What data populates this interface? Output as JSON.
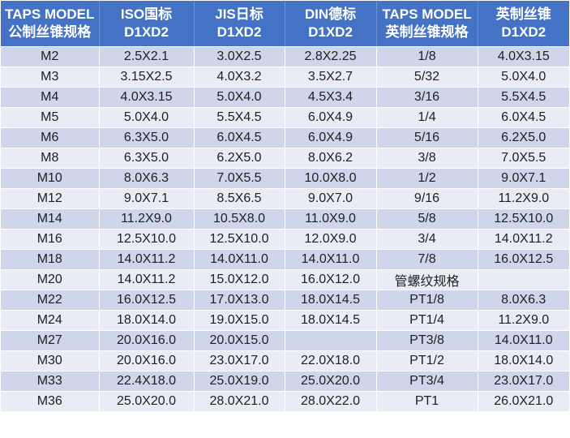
{
  "colors": {
    "header_bg": "#4472c4",
    "header_text": "#ffffff",
    "row_odd": "#cfd5ea",
    "row_even": "#e9ebf5"
  },
  "headers": [
    {
      "line1": "TAPS MODEL",
      "line2": "公制丝锥规格"
    },
    {
      "line1": "ISO国标",
      "line2": "D1XD2"
    },
    {
      "line1": "JIS日标",
      "line2": "D1XD2"
    },
    {
      "line1": "DIN德标",
      "line2": "D1XD2"
    },
    {
      "line1": "TAPS MODEL",
      "line2": "英制丝锥规格"
    },
    {
      "line1": "英制丝锥",
      "line2": "D1XD2"
    }
  ],
  "rows": [
    {
      "metric": "M2",
      "iso": "2.5X2.1",
      "jis": "3.0X2.5",
      "din": "2.8X2.25",
      "inch": "1/8",
      "inch_d": "4.0X3.15"
    },
    {
      "metric": "M3",
      "iso": "3.15X2.5",
      "jis": "4.0X3.2",
      "din": "3.5X2.7",
      "inch": "5/32",
      "inch_d": "5.0X4.0"
    },
    {
      "metric": "M4",
      "iso": "4.0X3.15",
      "jis": "5.0X4.0",
      "din": "4.5X3.4",
      "inch": "3/16",
      "inch_d": "5.5X4.5"
    },
    {
      "metric": "M5",
      "iso": "5.0X4.0",
      "jis": "5.5X4.5",
      "din": "6.0X4.9",
      "inch": "1/4",
      "inch_d": "6.0X4.5"
    },
    {
      "metric": "M6",
      "iso": "6.3X5.0",
      "jis": "6.0X4.5",
      "din": "6.0X4.9",
      "inch": "5/16",
      "inch_d": "6.2X5.0"
    },
    {
      "metric": "M8",
      "iso": "6.3X5.0",
      "jis": "6.2X5.0",
      "din": "8.0X6.2",
      "inch": "3/8",
      "inch_d": "7.0X5.5"
    },
    {
      "metric": "M10",
      "iso": "8.0X6.3",
      "jis": "7.0X5.5",
      "din": "10.0X8.0",
      "inch": "1/2",
      "inch_d": "9.0X7.1"
    },
    {
      "metric": "M12",
      "iso": "9.0X7.1",
      "jis": "8.5X6.5",
      "din": "9.0X7.0",
      "inch": "9/16",
      "inch_d": "11.2X9.0"
    },
    {
      "metric": "M14",
      "iso": "11.2X9.0",
      "jis": "10.5X8.0",
      "din": "11.0X9.0",
      "inch": "5/8",
      "inch_d": "12.5X10.0"
    },
    {
      "metric": "M16",
      "iso": "12.5X10.0",
      "jis": "12.5X10.0",
      "din": "12.0X9.0",
      "inch": "3/4",
      "inch_d": "14.0X11.2"
    },
    {
      "metric": "M18",
      "iso": "14.0X11.2",
      "jis": "14.0X11.0",
      "din": "14.0X11.0",
      "inch": "7/8",
      "inch_d": "16.0X12.5"
    },
    {
      "metric": "M20",
      "iso": "14.0X11.2",
      "jis": "15.0X12.0",
      "din": "16.0X12.0",
      "inch": "管螺纹规格",
      "inch_d": ""
    },
    {
      "metric": "M22",
      "iso": "16.0X12.5",
      "jis": "17.0X13.0",
      "din": "18.0X14.5",
      "inch": "PT1/8",
      "inch_d": "8.0X6.3"
    },
    {
      "metric": "M24",
      "iso": "18.0X14.0",
      "jis": "19.0X15.0",
      "din": "18.0X14.5",
      "inch": "PT1/4",
      "inch_d": "11.2X9.0"
    },
    {
      "metric": "M27",
      "iso": "20.0X16.0",
      "jis": "20.0X15.0",
      "din": "",
      "inch": "PT3/8",
      "inch_d": "14.0X11.0"
    },
    {
      "metric": "M30",
      "iso": "20.0X16.0",
      "jis": "23.0X17.0",
      "din": "22.0X18.0",
      "inch": "PT1/2",
      "inch_d": "18.0X14.0"
    },
    {
      "metric": "M33",
      "iso": "22.4X18.0",
      "jis": "25.0X19.0",
      "din": "25.0X20.0",
      "inch": "PT3/4",
      "inch_d": "23.0X17.0"
    },
    {
      "metric": "M36",
      "iso": "25.0X20.0",
      "jis": "28.0X21.0",
      "din": "28.0X22.0",
      "inch": "PT1",
      "inch_d": "26.0X21.0"
    }
  ]
}
